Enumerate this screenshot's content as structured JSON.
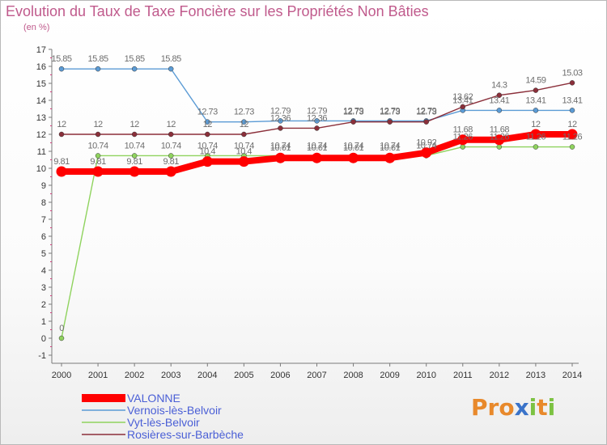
{
  "title": "Evolution du Taux de Taxe Foncière sur les Propriétés Non Bâties",
  "subtitle": "(en %)",
  "logo": {
    "text": "Proxiti",
    "letters": [
      {
        "ch": "P",
        "color": "#e8892b"
      },
      {
        "ch": "r",
        "color": "#e8892b"
      },
      {
        "ch": "o",
        "color": "#e8892b"
      },
      {
        "ch": "x",
        "color": "#3a73c9"
      },
      {
        "ch": "i",
        "color": "#7cc242"
      },
      {
        "ch": "t",
        "color": "#e8892b"
      },
      {
        "ch": "i",
        "color": "#7cc242"
      }
    ]
  },
  "chart_data": {
    "type": "line",
    "title": "Evolution du Taux de Taxe Foncière sur les Propriétés Non Bâties",
    "ylabel": "(en %)",
    "x": [
      "2000",
      "2001",
      "2002",
      "2003",
      "2004",
      "2005",
      "2006",
      "2007",
      "2008",
      "2009",
      "2010",
      "2011",
      "2012",
      "2013",
      "2014"
    ],
    "ylim": [
      -1,
      17
    ],
    "yticks": [
      -1,
      0,
      1,
      2,
      3,
      4,
      5,
      6,
      7,
      8,
      9,
      10,
      11,
      12,
      13,
      14,
      15,
      16,
      17
    ],
    "grid": false,
    "legend_position": "bottom-left",
    "series": [
      {
        "name": "VALONNE",
        "color": "#ff0000",
        "values": [
          9.81,
          9.81,
          9.81,
          9.81,
          10.4,
          10.4,
          10.61,
          10.61,
          10.61,
          10.61,
          10.92,
          11.68,
          11.68,
          12,
          12
        ],
        "labels": [
          "9.81",
          "9.81",
          "9.81",
          "9.81",
          "10.4",
          "10.4",
          "10.61",
          "10.61",
          "10.61",
          "10.61",
          "10.92",
          "11.68",
          "11.68",
          "12",
          "12"
        ]
      },
      {
        "name": "Vernois-lès-Belvoir",
        "color": "#5b9bd5",
        "values": [
          15.85,
          15.85,
          15.85,
          15.85,
          12.73,
          12.73,
          12.79,
          12.79,
          12.79,
          12.79,
          12.79,
          13.41,
          13.41,
          13.41,
          13.41
        ],
        "labels": [
          "15.85",
          "15.85",
          "15.85",
          "15.85",
          "12.73",
          "12.73",
          "12.79",
          "12.79",
          "12.79",
          "12.79",
          "12.79",
          "13.41",
          "13.41",
          "13.41",
          "13.41"
        ]
      },
      {
        "name": "Vyt-lès-Belvoir",
        "color": "#8fd35e",
        "values": [
          0,
          10.74,
          10.74,
          10.74,
          10.74,
          10.74,
          10.74,
          10.74,
          10.74,
          10.74,
          10.74,
          11.26,
          11.26,
          11.26,
          11.26
        ],
        "labels": [
          "0",
          "10.74",
          "10.74",
          "10.74",
          "10.74",
          "10.74",
          "10.74",
          "10.74",
          "10.74",
          "10.74",
          "10.74",
          "11.26",
          "11.26",
          "11.26",
          "11.26"
        ]
      },
      {
        "name": "Rosières-sur-Barbèche",
        "color": "#8b2f3a",
        "values": [
          12,
          12,
          12,
          12,
          12,
          12,
          12.36,
          12.36,
          12.73,
          12.73,
          12.73,
          13.62,
          14.3,
          14.59,
          15.03
        ],
        "labels": [
          "12",
          "12",
          "12",
          "12",
          "12",
          "12",
          "12.36",
          "12.36",
          "12.73",
          "12.73",
          "12.73",
          "13.62",
          "14.3",
          "14.59",
          "15.03"
        ]
      }
    ]
  }
}
